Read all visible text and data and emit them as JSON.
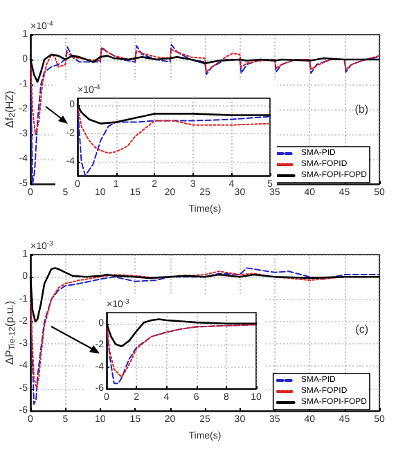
{
  "chart_data": [
    {
      "type": "line",
      "xlabel": "Time(s)",
      "ylabel": "Δf$_{2}$(HZ)",
      "annotations": [
        "×10$^{-4}$",
        "(b)"
      ],
      "xlim": [
        0,
        50
      ],
      "ylim": [
        -5,
        1
      ],
      "xticks": [
        0,
        5,
        10,
        15,
        20,
        25,
        30,
        35,
        40,
        45,
        50
      ],
      "yticks": [
        -5,
        -4,
        -3,
        -2,
        -1,
        0,
        1
      ],
      "grid": true,
      "legend": "bottom right",
      "marker": "none",
      "series": [
        {
          "name": "SMA-PID",
          "color": "#2222cc",
          "line_style": "dashed",
          "x": [
            0,
            0.3,
            0.6,
            1,
            1.5,
            2,
            3,
            4,
            5,
            5.3,
            6,
            7,
            9,
            10,
            10.2,
            11,
            13,
            15,
            15.2,
            16,
            18,
            20,
            20.2,
            21,
            23,
            25,
            25.2,
            26,
            28,
            30,
            30.2,
            31,
            33,
            35,
            35.2,
            36,
            38,
            40,
            40.2,
            41,
            43,
            45,
            45.2,
            46,
            48,
            50
          ],
          "values": [
            0,
            -5,
            -4.5,
            -2.5,
            -1,
            -0.5,
            -0.3,
            -0.2,
            0,
            0.5,
            0.1,
            -0.1,
            -0.1,
            -0.1,
            0.5,
            0.3,
            0,
            -0.1,
            0.55,
            0.2,
            0,
            -0.1,
            0.6,
            0.3,
            0,
            -0.1,
            -0.6,
            -0.3,
            0,
            0,
            -0.55,
            -0.2,
            0,
            0,
            -0.5,
            -0.2,
            0,
            0,
            -0.55,
            -0.2,
            0,
            0,
            -0.5,
            -0.2,
            0,
            0.1
          ]
        },
        {
          "name": "SMA-FOPID",
          "color": "#dd2222",
          "line_style": "dotted",
          "x": [
            0,
            0.3,
            0.7,
            1.2,
            1.7,
            2.3,
            3,
            3.5,
            4,
            5,
            5.2,
            6,
            8,
            10,
            10.2,
            11,
            12,
            14,
            15,
            15.2,
            16,
            18,
            20,
            20.2,
            21,
            23,
            25,
            25.2,
            26,
            27,
            28,
            29,
            30,
            30.2,
            31,
            33,
            35,
            35.2,
            36,
            38,
            40,
            40.2,
            41,
            43,
            45,
            45.2,
            46,
            48,
            50
          ],
          "values": [
            0,
            -2,
            -3,
            -2.5,
            -1,
            -0.2,
            0.2,
            0.1,
            -0.3,
            -0.2,
            0.3,
            0.1,
            0,
            -0.05,
            0.45,
            0.3,
            0.15,
            0,
            0,
            0.35,
            0.25,
            0.1,
            0.05,
            0.4,
            0.3,
            0.1,
            0.05,
            -0.5,
            -0.3,
            -0.1,
            0.1,
            0.25,
            0.2,
            -0.3,
            -0.15,
            -0.05,
            0,
            -0.35,
            -0.2,
            0,
            0,
            -0.4,
            -0.25,
            0,
            0,
            -0.4,
            -0.2,
            0,
            0.15
          ]
        },
        {
          "name": "SMA-FOPI-FOPD",
          "color": "#000000",
          "line_style": "solid",
          "x": [
            0,
            0.5,
            1,
            1.5,
            2,
            3,
            4,
            5,
            6,
            7,
            8,
            9,
            10,
            11,
            12,
            14,
            15,
            16,
            18,
            20,
            21,
            23,
            25,
            27,
            30,
            31,
            33,
            35,
            36,
            40,
            42,
            45,
            50
          ],
          "values": [
            0,
            -0.6,
            -0.9,
            -0.5,
            0,
            0.2,
            0.15,
            0,
            0.15,
            0.1,
            0,
            -0.1,
            0.1,
            0.15,
            0.05,
            0,
            0.05,
            0.1,
            0,
            0.05,
            0.1,
            0,
            -0.15,
            -0.05,
            0,
            -0.05,
            0,
            -0.05,
            0,
            -0.05,
            0.05,
            0,
            0
          ]
        }
      ]
    },
    {
      "type": "line",
      "annotations": [
        "×10$^{-4}$"
      ],
      "xlim": [
        0,
        5
      ],
      "ylim": [
        -5,
        0.5
      ],
      "xticks": [
        0,
        1,
        2,
        3,
        4,
        5
      ],
      "yticks": [
        -4,
        -2,
        0
      ],
      "grid": true,
      "marker": "none",
      "series": [
        {
          "color": "#2222cc",
          "line_style": "dashed",
          "x": [
            0,
            0.1,
            0.2,
            0.4,
            0.6,
            0.8,
            1,
            1.5,
            2,
            3,
            4,
            5
          ],
          "values": [
            0,
            -4,
            -5,
            -4.2,
            -2.5,
            -1.5,
            -1.2,
            -1.2,
            -1.1,
            -1.1,
            -1,
            -0.8
          ]
        },
        {
          "color": "#dd2222",
          "line_style": "dotted",
          "x": [
            0,
            0.1,
            0.3,
            0.5,
            0.8,
            1,
            1.3,
            1.5,
            2,
            2.5,
            3,
            4,
            5
          ],
          "values": [
            0,
            -1.5,
            -2.5,
            -3.1,
            -3.4,
            -3.3,
            -2.9,
            -2.2,
            -1.1,
            -1.1,
            -1.4,
            -1.4,
            -1.3
          ]
        },
        {
          "color": "#000000",
          "line_style": "solid",
          "x": [
            0,
            0.1,
            0.3,
            0.6,
            1,
            1.5,
            2,
            2.5,
            3,
            4,
            5
          ],
          "values": [
            0,
            -0.5,
            -1,
            -1.3,
            -1.2,
            -0.9,
            -0.6,
            -0.6,
            -0.6,
            -0.7,
            -0.7
          ]
        }
      ]
    },
    {
      "type": "line",
      "xlabel": "Time(s)",
      "ylabel": "ΔP$_{Tie-12}$(p.u.)",
      "annotations": [
        "×10$^{-3}$",
        "(c)"
      ],
      "xlim": [
        0,
        50
      ],
      "ylim": [
        -6,
        1
      ],
      "xticks": [
        0,
        5,
        10,
        15,
        20,
        25,
        30,
        35,
        40,
        45,
        50
      ],
      "yticks": [
        -6,
        -5,
        -4,
        -3,
        -2,
        -1,
        0,
        1
      ],
      "grid": true,
      "legend": "bottom right",
      "marker": "none",
      "series": [
        {
          "name": "SMA-PID",
          "color": "#2222cc",
          "line_style": "dashed",
          "x": [
            0,
            0.2,
            0.5,
            0.8,
            1,
            1.5,
            2,
            3,
            4,
            5,
            7,
            10,
            12,
            15,
            18,
            20,
            25,
            27,
            30,
            31,
            33,
            35,
            37,
            40,
            42,
            45,
            50
          ],
          "values": [
            0,
            -3,
            -5.7,
            -5.5,
            -4.5,
            -3.2,
            -2,
            -1,
            -0.6,
            -0.4,
            -0.3,
            -0.1,
            0,
            -0.2,
            -0.15,
            0,
            0,
            0.15,
            0.1,
            0.4,
            0.3,
            0.2,
            0.25,
            0,
            -0.1,
            0.1,
            0.1
          ]
        },
        {
          "name": "SMA-FOPID",
          "color": "#dd2222",
          "line_style": "dotted",
          "x": [
            0,
            0.2,
            0.5,
            0.9,
            1.2,
            1.5,
            2,
            3,
            4,
            5,
            7,
            10,
            12,
            15,
            18,
            20,
            25,
            27,
            30,
            32,
            35,
            40,
            45,
            50
          ],
          "values": [
            0,
            -2.5,
            -4.5,
            -5,
            -4.5,
            -3.5,
            -2.2,
            -1,
            -0.5,
            -0.3,
            -0.15,
            0,
            0.1,
            0.05,
            -0.05,
            0,
            0.1,
            0.25,
            0.1,
            0.15,
            0,
            -0.15,
            0,
            0
          ]
        },
        {
          "name": "SMA-FOPI-FOPD",
          "color": "#000000",
          "line_style": "solid",
          "x": [
            0,
            0.3,
            0.7,
            1,
            1.5,
            2,
            3,
            3.5,
            4,
            5,
            6,
            8,
            10,
            11,
            12,
            15,
            17,
            20,
            22,
            25,
            27,
            30,
            32,
            35,
            40,
            45,
            50
          ],
          "values": [
            0,
            -1.5,
            -2,
            -1.9,
            -1.2,
            -0.3,
            0.35,
            0.4,
            0.35,
            0.2,
            0.05,
            0,
            0.05,
            0.1,
            0.05,
            0,
            -0.05,
            0,
            0.05,
            0,
            0.1,
            0,
            0.1,
            0,
            -0.05,
            0,
            0
          ]
        }
      ]
    },
    {
      "type": "line",
      "annotations": [
        "×10$^{-3}$"
      ],
      "xlim": [
        0,
        10
      ],
      "ylim": [
        -6,
        1
      ],
      "xticks": [
        0,
        2,
        4,
        6,
        8,
        10
      ],
      "yticks": [
        -6,
        -4,
        -2,
        0
      ],
      "grid": true,
      "marker": "none",
      "series": [
        {
          "color": "#2222cc",
          "line_style": "dashed",
          "x": [
            0,
            0.2,
            0.5,
            0.8,
            1,
            1.5,
            2,
            3,
            4,
            5,
            6,
            8,
            10
          ],
          "values": [
            0,
            -3,
            -5.5,
            -5.5,
            -5,
            -3.3,
            -2.2,
            -1.2,
            -0.8,
            -0.5,
            -0.3,
            -0.2,
            -0.1
          ]
        },
        {
          "color": "#dd2222",
          "line_style": "dotted",
          "x": [
            0,
            0.2,
            0.5,
            1,
            1.3,
            1.7,
            2,
            3,
            4,
            5,
            6,
            8,
            10
          ],
          "values": [
            0,
            -2.5,
            -4.2,
            -4.9,
            -4.3,
            -3.2,
            -2.3,
            -1.2,
            -0.8,
            -0.5,
            -0.3,
            -0.2,
            -0.1
          ]
        },
        {
          "color": "#000000",
          "line_style": "solid",
          "x": [
            0,
            0.3,
            0.6,
            1,
            1.5,
            2,
            2.5,
            3,
            3.5,
            4,
            5,
            6,
            8,
            10
          ],
          "values": [
            0,
            -1.2,
            -1.9,
            -2.1,
            -1.6,
            -0.7,
            0.1,
            0.3,
            0.4,
            0.3,
            0.2,
            0.1,
            0,
            0
          ]
        }
      ]
    }
  ]
}
